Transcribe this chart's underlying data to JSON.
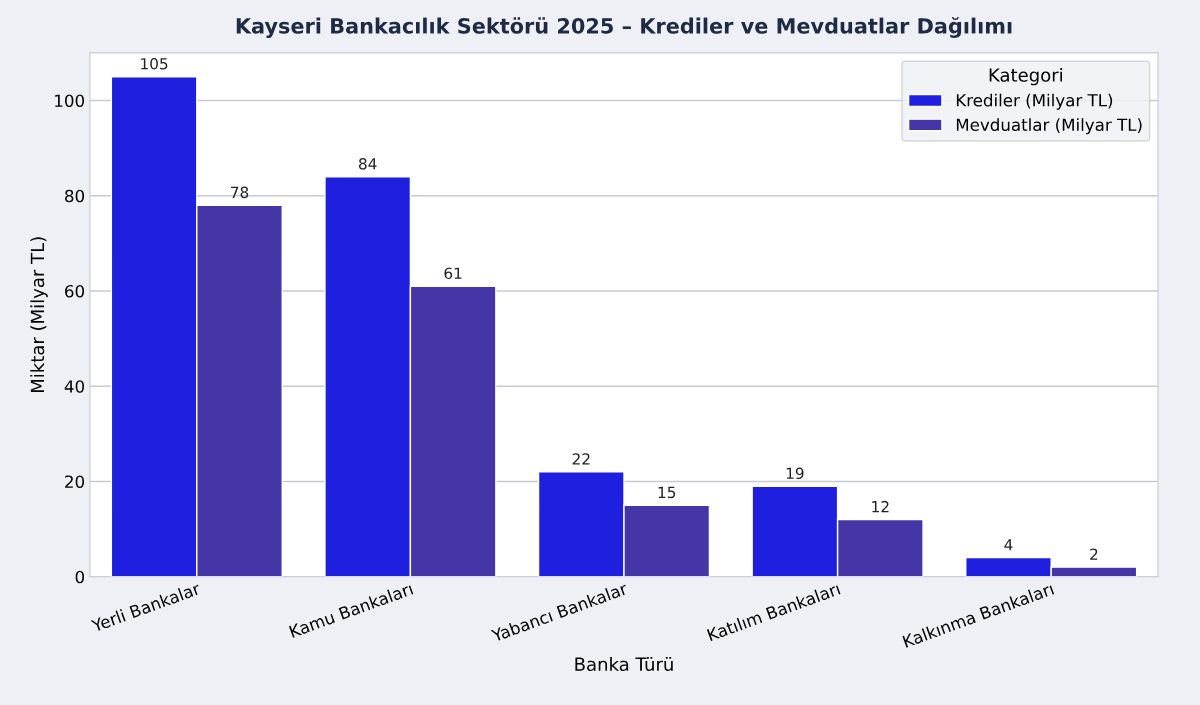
{
  "chart_data": {
    "type": "bar",
    "title": "Kayseri Bankacılık Sektörü 2025 – Krediler ve Mevduatlar Dağılımı",
    "xlabel": "Banka Türü",
    "ylabel": "Miktar (Milyar TL)",
    "legend_title": "Kategori",
    "categories": [
      "Yerli Bankalar",
      "Kamu Bankaları",
      "Yabancı Bankalar",
      "Katılım Bankaları",
      "Kalkınma Bankaları"
    ],
    "series": [
      {
        "name": "Krediler (Milyar TL)",
        "color": "#1f1fdf",
        "values": [
          105,
          84,
          22,
          19,
          4
        ]
      },
      {
        "name": "Mevduatlar (Milyar TL)",
        "color": "#4536a8",
        "values": [
          78,
          61,
          15,
          12,
          2
        ]
      }
    ],
    "ylim": [
      0,
      110
    ],
    "yticks": [
      0,
      20,
      40,
      60,
      80,
      100
    ],
    "grid": "y",
    "legend": "top right",
    "data_labels": true
  }
}
